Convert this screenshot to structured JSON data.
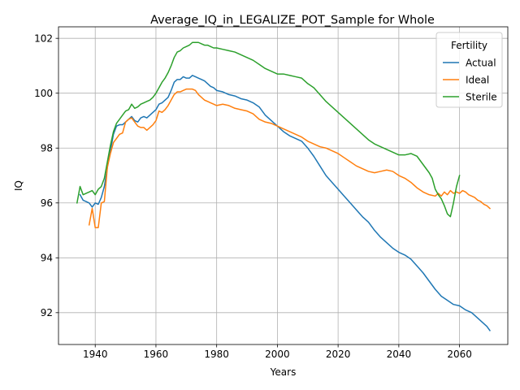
{
  "chart_data": {
    "type": "line",
    "title": "Average_IQ_in_LEGALIZE_POT_Sample for Whole",
    "xlabel": "Years",
    "ylabel": "IQ",
    "xlim": [
      1927.9,
      2075.9
    ],
    "ylim": [
      90.84,
      102.42
    ],
    "x_ticks": [
      "1940",
      "1960",
      "1980",
      "2000",
      "2020",
      "2040",
      "2060"
    ],
    "y_ticks": [
      "92",
      "94",
      "96",
      "98",
      "100",
      "102"
    ],
    "grid": true,
    "legend": {
      "title": "Fertility",
      "placement": "top-right"
    },
    "series": [
      {
        "name": "Actual",
        "color": "#1f77b4",
        "points": [
          [
            1935,
            96.3
          ],
          [
            1936,
            96.1
          ],
          [
            1937,
            96.05
          ],
          [
            1938,
            96.0
          ],
          [
            1939,
            95.85
          ],
          [
            1940,
            96.0
          ],
          [
            1941,
            95.95
          ],
          [
            1942,
            96.2
          ],
          [
            1943,
            96.6
          ],
          [
            1944,
            97.3
          ],
          [
            1945,
            97.9
          ],
          [
            1946,
            98.5
          ],
          [
            1947,
            98.8
          ],
          [
            1948,
            98.85
          ],
          [
            1949,
            98.85
          ],
          [
            1950,
            98.95
          ],
          [
            1951,
            99.05
          ],
          [
            1952,
            99.15
          ],
          [
            1953,
            99.0
          ],
          [
            1954,
            98.95
          ],
          [
            1955,
            99.1
          ],
          [
            1956,
            99.15
          ],
          [
            1957,
            99.1
          ],
          [
            1958,
            99.2
          ],
          [
            1959,
            99.3
          ],
          [
            1960,
            99.4
          ],
          [
            1961,
            99.6
          ],
          [
            1962,
            99.65
          ],
          [
            1963,
            99.75
          ],
          [
            1964,
            99.85
          ],
          [
            1965,
            100.1
          ],
          [
            1966,
            100.4
          ],
          [
            1967,
            100.5
          ],
          [
            1968,
            100.5
          ],
          [
            1969,
            100.6
          ],
          [
            1970,
            100.55
          ],
          [
            1971,
            100.55
          ],
          [
            1972,
            100.65
          ],
          [
            1973,
            100.6
          ],
          [
            1974,
            100.55
          ],
          [
            1975,
            100.5
          ],
          [
            1976,
            100.45
          ],
          [
            1977,
            100.35
          ],
          [
            1978,
            100.25
          ],
          [
            1979,
            100.2
          ],
          [
            1980,
            100.1
          ],
          [
            1982,
            100.05
          ],
          [
            1984,
            99.95
          ],
          [
            1986,
            99.9
          ],
          [
            1988,
            99.8
          ],
          [
            1990,
            99.75
          ],
          [
            1992,
            99.65
          ],
          [
            1994,
            99.5
          ],
          [
            1996,
            99.2
          ],
          [
            1998,
            99.0
          ],
          [
            2000,
            98.8
          ],
          [
            2002,
            98.6
          ],
          [
            2004,
            98.45
          ],
          [
            2006,
            98.35
          ],
          [
            2008,
            98.25
          ],
          [
            2010,
            98.0
          ],
          [
            2012,
            97.7
          ],
          [
            2014,
            97.35
          ],
          [
            2016,
            97.0
          ],
          [
            2018,
            96.75
          ],
          [
            2020,
            96.5
          ],
          [
            2022,
            96.25
          ],
          [
            2024,
            96.0
          ],
          [
            2026,
            95.75
          ],
          [
            2028,
            95.5
          ],
          [
            2030,
            95.3
          ],
          [
            2032,
            95.0
          ],
          [
            2034,
            94.75
          ],
          [
            2036,
            94.55
          ],
          [
            2038,
            94.35
          ],
          [
            2040,
            94.2
          ],
          [
            2042,
            94.1
          ],
          [
            2044,
            93.95
          ],
          [
            2046,
            93.7
          ],
          [
            2048,
            93.45
          ],
          [
            2050,
            93.15
          ],
          [
            2052,
            92.85
          ],
          [
            2054,
            92.6
          ],
          [
            2056,
            92.45
          ],
          [
            2058,
            92.3
          ],
          [
            2060,
            92.25
          ],
          [
            2062,
            92.1
          ],
          [
            2064,
            92.0
          ],
          [
            2066,
            91.8
          ],
          [
            2068,
            91.6
          ],
          [
            2069,
            91.5
          ],
          [
            2070,
            91.35
          ]
        ]
      },
      {
        "name": "Ideal",
        "color": "#ff7f0e",
        "points": [
          [
            1938,
            95.2
          ],
          [
            1939,
            95.8
          ],
          [
            1940,
            95.1
          ],
          [
            1941,
            95.1
          ],
          [
            1942,
            96.0
          ],
          [
            1943,
            96.05
          ],
          [
            1944,
            97.3
          ],
          [
            1945,
            97.8
          ],
          [
            1946,
            98.2
          ],
          [
            1947,
            98.35
          ],
          [
            1948,
            98.5
          ],
          [
            1949,
            98.55
          ],
          [
            1950,
            98.95
          ],
          [
            1951,
            99.05
          ],
          [
            1952,
            99.1
          ],
          [
            1953,
            98.95
          ],
          [
            1954,
            98.8
          ],
          [
            1955,
            98.75
          ],
          [
            1956,
            98.75
          ],
          [
            1957,
            98.65
          ],
          [
            1958,
            98.75
          ],
          [
            1959,
            98.85
          ],
          [
            1960,
            99.0
          ],
          [
            1961,
            99.35
          ],
          [
            1962,
            99.3
          ],
          [
            1963,
            99.4
          ],
          [
            1964,
            99.55
          ],
          [
            1965,
            99.75
          ],
          [
            1966,
            99.95
          ],
          [
            1967,
            100.05
          ],
          [
            1968,
            100.05
          ],
          [
            1969,
            100.1
          ],
          [
            1970,
            100.15
          ],
          [
            1971,
            100.15
          ],
          [
            1972,
            100.15
          ],
          [
            1973,
            100.1
          ],
          [
            1974,
            99.95
          ],
          [
            1975,
            99.85
          ],
          [
            1976,
            99.75
          ],
          [
            1977,
            99.7
          ],
          [
            1978,
            99.65
          ],
          [
            1979,
            99.6
          ],
          [
            1980,
            99.55
          ],
          [
            1982,
            99.6
          ],
          [
            1984,
            99.55
          ],
          [
            1986,
            99.45
          ],
          [
            1988,
            99.4
          ],
          [
            1990,
            99.35
          ],
          [
            1992,
            99.25
          ],
          [
            1994,
            99.05
          ],
          [
            1996,
            98.95
          ],
          [
            1998,
            98.9
          ],
          [
            2000,
            98.8
          ],
          [
            2002,
            98.7
          ],
          [
            2004,
            98.6
          ],
          [
            2006,
            98.5
          ],
          [
            2008,
            98.4
          ],
          [
            2010,
            98.25
          ],
          [
            2012,
            98.15
          ],
          [
            2014,
            98.05
          ],
          [
            2016,
            98.0
          ],
          [
            2018,
            97.9
          ],
          [
            2020,
            97.8
          ],
          [
            2022,
            97.65
          ],
          [
            2024,
            97.5
          ],
          [
            2026,
            97.35
          ],
          [
            2028,
            97.25
          ],
          [
            2030,
            97.15
          ],
          [
            2032,
            97.1
          ],
          [
            2034,
            97.15
          ],
          [
            2036,
            97.2
          ],
          [
            2038,
            97.15
          ],
          [
            2040,
            97.0
          ],
          [
            2042,
            96.9
          ],
          [
            2044,
            96.75
          ],
          [
            2046,
            96.55
          ],
          [
            2048,
            96.4
          ],
          [
            2050,
            96.3
          ],
          [
            2052,
            96.25
          ],
          [
            2053,
            96.35
          ],
          [
            2054,
            96.25
          ],
          [
            2055,
            96.4
          ],
          [
            2056,
            96.3
          ],
          [
            2057,
            96.45
          ],
          [
            2058,
            96.35
          ],
          [
            2059,
            96.4
          ],
          [
            2060,
            96.35
          ],
          [
            2061,
            96.45
          ],
          [
            2062,
            96.4
          ],
          [
            2063,
            96.3
          ],
          [
            2064,
            96.25
          ],
          [
            2065,
            96.2
          ],
          [
            2066,
            96.1
          ],
          [
            2067,
            96.05
          ],
          [
            2068,
            95.95
          ],
          [
            2069,
            95.9
          ],
          [
            2070,
            95.8
          ]
        ]
      },
      {
        "name": "Sterile",
        "color": "#2ca02c",
        "points": [
          [
            1934,
            96.0
          ],
          [
            1935,
            96.6
          ],
          [
            1936,
            96.3
          ],
          [
            1937,
            96.35
          ],
          [
            1938,
            96.4
          ],
          [
            1939,
            96.45
          ],
          [
            1940,
            96.3
          ],
          [
            1941,
            96.5
          ],
          [
            1942,
            96.6
          ],
          [
            1943,
            96.9
          ],
          [
            1944,
            97.5
          ],
          [
            1945,
            98.1
          ],
          [
            1946,
            98.6
          ],
          [
            1947,
            98.9
          ],
          [
            1948,
            99.05
          ],
          [
            1949,
            99.2
          ],
          [
            1950,
            99.35
          ],
          [
            1951,
            99.4
          ],
          [
            1952,
            99.6
          ],
          [
            1953,
            99.45
          ],
          [
            1954,
            99.5
          ],
          [
            1955,
            99.6
          ],
          [
            1956,
            99.65
          ],
          [
            1957,
            99.7
          ],
          [
            1958,
            99.75
          ],
          [
            1959,
            99.85
          ],
          [
            1960,
            100.0
          ],
          [
            1961,
            100.2
          ],
          [
            1962,
            100.4
          ],
          [
            1963,
            100.55
          ],
          [
            1964,
            100.75
          ],
          [
            1965,
            101.0
          ],
          [
            1966,
            101.3
          ],
          [
            1967,
            101.5
          ],
          [
            1968,
            101.55
          ],
          [
            1969,
            101.65
          ],
          [
            1970,
            101.7
          ],
          [
            1971,
            101.75
          ],
          [
            1972,
            101.85
          ],
          [
            1973,
            101.85
          ],
          [
            1974,
            101.85
          ],
          [
            1975,
            101.8
          ],
          [
            1976,
            101.75
          ],
          [
            1977,
            101.75
          ],
          [
            1978,
            101.7
          ],
          [
            1979,
            101.65
          ],
          [
            1980,
            101.65
          ],
          [
            1982,
            101.6
          ],
          [
            1984,
            101.55
          ],
          [
            1986,
            101.5
          ],
          [
            1988,
            101.4
          ],
          [
            1990,
            101.3
          ],
          [
            1992,
            101.2
          ],
          [
            1994,
            101.05
          ],
          [
            1996,
            100.9
          ],
          [
            1998,
            100.8
          ],
          [
            2000,
            100.7
          ],
          [
            2002,
            100.7
          ],
          [
            2004,
            100.65
          ],
          [
            2006,
            100.6
          ],
          [
            2008,
            100.55
          ],
          [
            2010,
            100.35
          ],
          [
            2012,
            100.2
          ],
          [
            2014,
            99.95
          ],
          [
            2016,
            99.7
          ],
          [
            2018,
            99.5
          ],
          [
            2020,
            99.3
          ],
          [
            2022,
            99.1
          ],
          [
            2024,
            98.9
          ],
          [
            2026,
            98.7
          ],
          [
            2028,
            98.5
          ],
          [
            2030,
            98.3
          ],
          [
            2032,
            98.15
          ],
          [
            2034,
            98.05
          ],
          [
            2036,
            97.95
          ],
          [
            2038,
            97.85
          ],
          [
            2040,
            97.75
          ],
          [
            2042,
            97.75
          ],
          [
            2044,
            97.8
          ],
          [
            2046,
            97.7
          ],
          [
            2048,
            97.4
          ],
          [
            2050,
            97.1
          ],
          [
            2051,
            96.9
          ],
          [
            2052,
            96.5
          ],
          [
            2053,
            96.3
          ],
          [
            2054,
            96.15
          ],
          [
            2055,
            95.9
          ],
          [
            2056,
            95.6
          ],
          [
            2057,
            95.5
          ],
          [
            2058,
            96.0
          ],
          [
            2059,
            96.6
          ],
          [
            2060,
            97.0
          ]
        ]
      }
    ]
  }
}
